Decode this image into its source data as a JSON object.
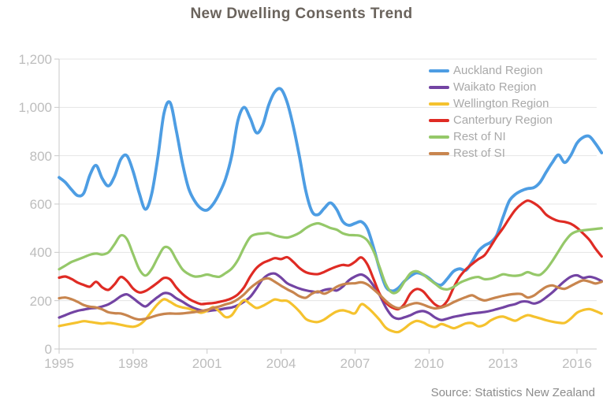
{
  "title": "New Dwelling Consents Trend",
  "source": "Source: Statistics New Zealand",
  "colors": {
    "title_text": "#6A635C",
    "axis_label": "#BDBDBD",
    "legend_label": "#A9A9A9",
    "source_text": "#8C8C8C",
    "gridline": "#E5E5E5",
    "axis_line": "#C9C9C9"
  },
  "chart_data": {
    "type": "line",
    "title": "New Dwelling Consents Trend",
    "xlabel": "",
    "ylabel": "",
    "xlim": [
      1995,
      2017
    ],
    "ylim": [
      0,
      1200
    ],
    "x_start": 1995.0,
    "x_step": 0.25,
    "grid": "horizontal",
    "legend_position": "top-right",
    "x_ticks": [
      "1995",
      "1998",
      "2001",
      "2004",
      "2007",
      "2010",
      "2013",
      "2016"
    ],
    "y_ticks": [
      "0",
      "200",
      "400",
      "600",
      "800",
      "1,000",
      "1,200"
    ],
    "y_tick_values": [
      0,
      200,
      400,
      600,
      800,
      1000,
      1200
    ],
    "series": [
      {
        "name": "Auckland Region",
        "color": "#4D9DE3",
        "stroke_width": 3.8,
        "values": [
          710,
          690,
          660,
          635,
          645,
          720,
          760,
          705,
          675,
          715,
          785,
          800,
          735,
          645,
          578,
          640,
          790,
          975,
          1020,
          905,
          770,
          665,
          612,
          582,
          575,
          600,
          645,
          705,
          800,
          945,
          1000,
          955,
          895,
          925,
          1010,
          1065,
          1075,
          1020,
          920,
          795,
          655,
          570,
          556,
          582,
          605,
          578,
          528,
          512,
          520,
          527,
          498,
          420,
          330,
          258,
          240,
          252,
          280,
          302,
          315,
          308,
          293,
          272,
          265,
          292,
          322,
          332,
          326,
          362,
          405,
          428,
          442,
          472,
          545,
          612,
          640,
          655,
          664,
          668,
          690,
          732,
          772,
          803,
          772,
          802,
          852,
          876,
          880,
          850,
          812
        ]
      },
      {
        "name": "Waikato Region",
        "color": "#7344A3",
        "stroke_width": 3.2,
        "values": [
          130,
          140,
          150,
          158,
          163,
          168,
          170,
          176,
          185,
          200,
          218,
          226,
          210,
          190,
          176,
          195,
          215,
          231,
          228,
          210,
          196,
          180,
          168,
          160,
          157,
          160,
          163,
          168,
          172,
          181,
          196,
          216,
          250,
          288,
          308,
          312,
          295,
          272,
          260,
          250,
          243,
          238,
          235,
          244,
          248,
          242,
          258,
          284,
          300,
          308,
          294,
          262,
          222,
          172,
          136,
          125,
          131,
          140,
          152,
          157,
          148,
          130,
          120,
          126,
          133,
          138,
          143,
          147,
          150,
          153,
          158,
          165,
          172,
          180,
          186,
          196,
          196,
          188,
          196,
          214,
          234,
          258,
          281,
          299,
          305,
          294,
          299,
          293,
          281
        ]
      },
      {
        "name": "Wellington Region",
        "color": "#F5C22E",
        "stroke_width": 3.2,
        "values": [
          95,
          100,
          105,
          110,
          115,
          112,
          108,
          105,
          108,
          105,
          100,
          95,
          92,
          100,
          122,
          155,
          186,
          206,
          195,
          180,
          172,
          167,
          158,
          150,
          158,
          173,
          155,
          132,
          140,
          176,
          202,
          186,
          170,
          178,
          192,
          205,
          200,
          199,
          180,
          155,
          125,
          114,
          112,
          122,
          140,
          155,
          160,
          154,
          148,
          185,
          172,
          148,
          120,
          88,
          74,
          70,
          85,
          105,
          116,
          110,
          97,
          91,
          103,
          95,
          86,
          95,
          106,
          107,
          94,
          100,
          118,
          130,
          134,
          125,
          117,
          130,
          140,
          134,
          127,
          119,
          113,
          109,
          108,
          126,
          150,
          161,
          165,
          157,
          146
        ]
      },
      {
        "name": "Canterbury Region",
        "color": "#DF2B24",
        "stroke_width": 3.2,
        "values": [
          295,
          300,
          290,
          275,
          265,
          258,
          278,
          255,
          245,
          268,
          298,
          282,
          250,
          234,
          240,
          256,
          275,
          294,
          288,
          255,
          228,
          208,
          195,
          186,
          188,
          190,
          195,
          201,
          210,
          226,
          255,
          300,
          335,
          355,
          366,
          376,
          372,
          380,
          360,
          335,
          318,
          311,
          310,
          319,
          331,
          341,
          348,
          346,
          361,
          379,
          350,
          290,
          228,
          192,
          172,
          165,
          186,
          230,
          248,
          239,
          210,
          184,
          175,
          201,
          255,
          300,
          330,
          352,
          372,
          388,
          425,
          465,
          500,
          540,
          576,
          600,
          614,
          604,
          585,
          556,
          540,
          530,
          526,
          518,
          502,
          478,
          452,
          415,
          383
        ]
      },
      {
        "name": "Rest of NI",
        "color": "#95C869",
        "stroke_width": 3.2,
        "values": [
          330,
          345,
          360,
          370,
          380,
          390,
          395,
          391,
          400,
          434,
          470,
          455,
          392,
          330,
          304,
          330,
          378,
          420,
          414,
          370,
          330,
          310,
          300,
          302,
          308,
          302,
          299,
          314,
          333,
          368,
          420,
          463,
          475,
          478,
          480,
          471,
          464,
          461,
          469,
          481,
          500,
          514,
          520,
          512,
          501,
          494,
          479,
          472,
          471,
          467,
          449,
          405,
          338,
          268,
          233,
          240,
          278,
          313,
          322,
          309,
          289,
          270,
          251,
          247,
          257,
          274,
          285,
          294,
          298,
          289,
          291,
          299,
          309,
          305,
          303,
          307,
          318,
          309,
          307,
          329,
          364,
          404,
          444,
          474,
          487,
          491,
          494,
          497,
          500
        ]
      },
      {
        "name": "Rest of SI",
        "color": "#C8854E",
        "stroke_width": 3.2,
        "values": [
          210,
          213,
          206,
          195,
          182,
          175,
          172,
          164,
          152,
          148,
          147,
          139,
          128,
          122,
          125,
          132,
          140,
          145,
          147,
          146,
          147,
          150,
          153,
          157,
          162,
          170,
          176,
          185,
          192,
          206,
          226,
          252,
          272,
          288,
          292,
          278,
          262,
          247,
          234,
          218,
          212,
          229,
          238,
          229,
          240,
          257,
          267,
          271,
          272,
          276,
          267,
          247,
          224,
          199,
          179,
          169,
          175,
          185,
          190,
          184,
          174,
          168,
          172,
          181,
          194,
          205,
          215,
          222,
          209,
          201,
          207,
          214,
          220,
          225,
          228,
          227,
          213,
          221,
          240,
          257,
          263,
          254,
          249,
          261,
          274,
          284,
          279,
          271,
          278
        ]
      }
    ]
  }
}
